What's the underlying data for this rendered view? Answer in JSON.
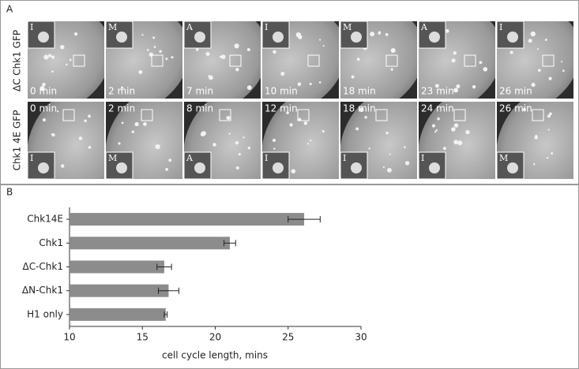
{
  "panel_a": {
    "label": "A",
    "rows": [
      {
        "label": "ΔC Chk1 GFP",
        "frames": [
          {
            "time": "0 min",
            "inset": "I"
          },
          {
            "time": "2 min",
            "inset": "M"
          },
          {
            "time": "7 min",
            "inset": "A"
          },
          {
            "time": "10 min",
            "inset": "I"
          },
          {
            "time": "18 min",
            "inset": "M"
          },
          {
            "time": "23 min",
            "inset": "A"
          },
          {
            "time": "26 min",
            "inset": "I"
          }
        ]
      },
      {
        "label": "Chk1 4E GFP",
        "frames": [
          {
            "time": "0 min",
            "inset": "I"
          },
          {
            "time": "2 min",
            "inset": "M"
          },
          {
            "time": "8 min",
            "inset": "A"
          },
          {
            "time": "12 min",
            "inset": "I"
          },
          {
            "time": "18 min",
            "inset": "I"
          },
          {
            "time": "24 min",
            "inset": "I"
          },
          {
            "time": "26 min",
            "inset": "M"
          }
        ]
      }
    ]
  },
  "chart_data": {
    "type": "bar",
    "orientation": "horizontal",
    "panel_label": "B",
    "categories": [
      "Chk14E",
      "Chk1",
      "ΔC-Chk1",
      "ΔN-Chk1",
      "H1 only"
    ],
    "values": [
      26.1,
      21.0,
      16.5,
      16.8,
      16.6
    ],
    "errors": [
      1.1,
      0.4,
      0.5,
      0.7,
      0.1
    ],
    "color": "#8c8c8c",
    "xlim": [
      10,
      30
    ],
    "xticks": [
      10,
      15,
      20,
      25,
      30
    ],
    "xlabel": "cell cycle length, mins"
  }
}
